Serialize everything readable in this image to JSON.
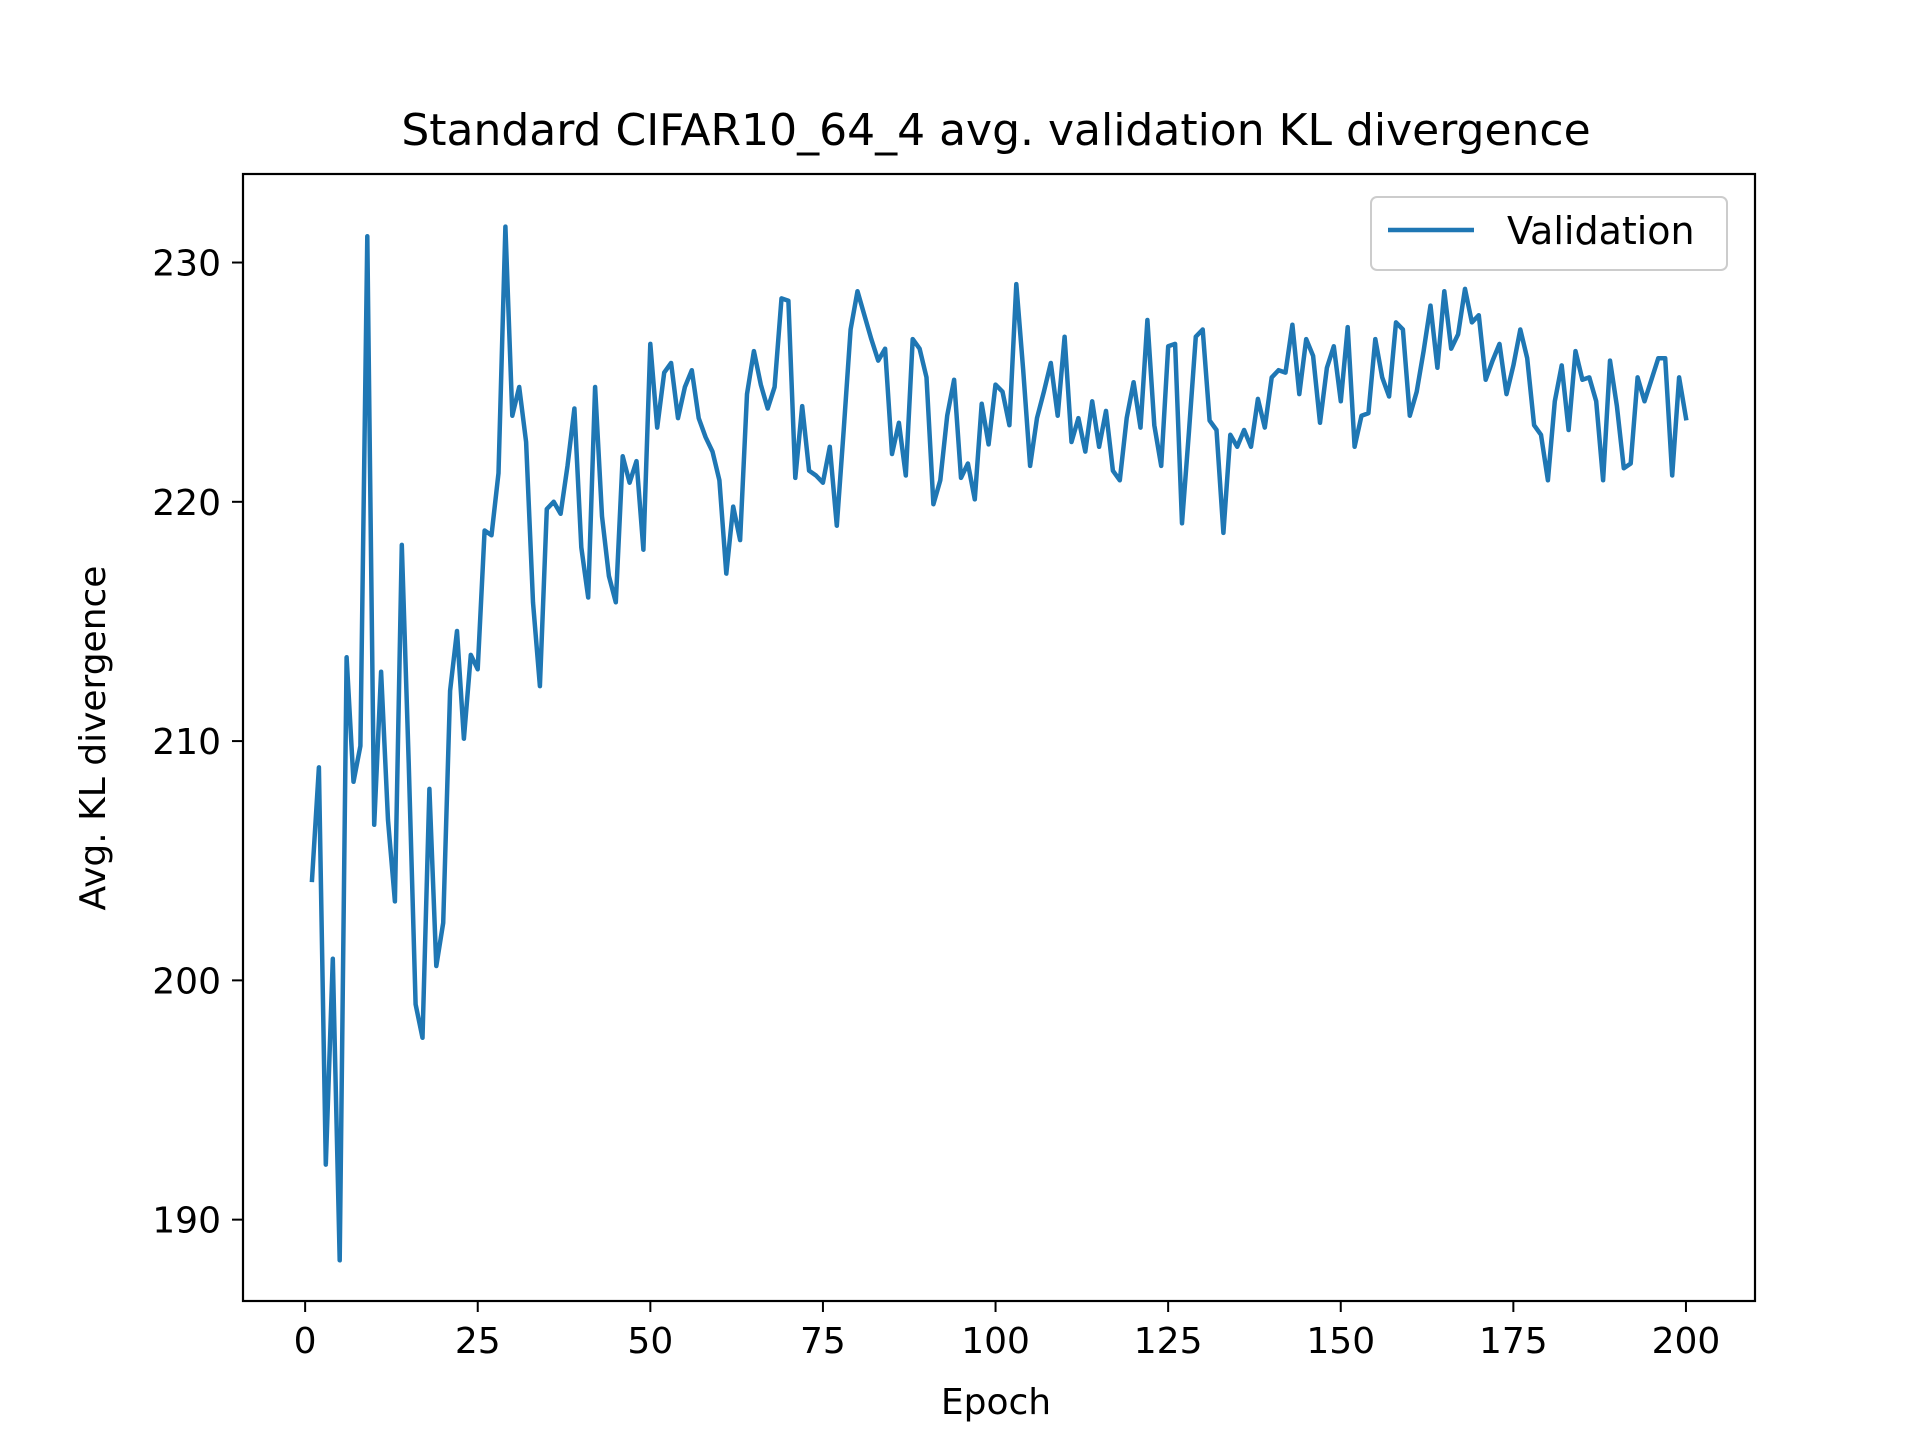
{
  "chart_data": {
    "type": "line",
    "title": "Standard CIFAR10_64_4 avg. validation KL divergence",
    "xlabel": "Epoch",
    "ylabel": "Avg. KL divergence",
    "xlim": [
      -9,
      210
    ],
    "ylim": [
      186.6,
      233.7
    ],
    "xticks": [
      0,
      25,
      50,
      75,
      100,
      125,
      150,
      175,
      200
    ],
    "yticks": [
      190,
      200,
      210,
      220,
      230
    ],
    "xtick_labels": [
      "0",
      "25",
      "50",
      "75",
      "100",
      "125",
      "150",
      "175",
      "200"
    ],
    "ytick_labels": [
      "190",
      "200",
      "210",
      "220",
      "230"
    ],
    "grid": false,
    "legend": {
      "position": "top-right",
      "entries": [
        "Validation"
      ]
    },
    "series": [
      {
        "name": "Validation",
        "color": "#1f77b4",
        "x": [
          1,
          2,
          3,
          4,
          5,
          6,
          7,
          8,
          9,
          10,
          11,
          12,
          13,
          14,
          15,
          16,
          17,
          18,
          19,
          20,
          21,
          22,
          23,
          24,
          25,
          26,
          27,
          28,
          29,
          30,
          31,
          32,
          33,
          34,
          35,
          36,
          37,
          38,
          39,
          40,
          41,
          42,
          43,
          44,
          45,
          46,
          47,
          48,
          49,
          50,
          51,
          52,
          53,
          54,
          55,
          56,
          57,
          58,
          59,
          60,
          61,
          62,
          63,
          64,
          65,
          66,
          67,
          68,
          69,
          70,
          71,
          72,
          73,
          74,
          75,
          76,
          77,
          78,
          79,
          80,
          81,
          82,
          83,
          84,
          85,
          86,
          87,
          88,
          89,
          90,
          91,
          92,
          93,
          94,
          95,
          96,
          97,
          98,
          99,
          100,
          101,
          102,
          103,
          104,
          105,
          106,
          107,
          108,
          109,
          110,
          111,
          112,
          113,
          114,
          115,
          116,
          117,
          118,
          119,
          120,
          121,
          122,
          123,
          124,
          125,
          126,
          127,
          128,
          129,
          130,
          131,
          132,
          133,
          134,
          135,
          136,
          137,
          138,
          139,
          140,
          141,
          142,
          143,
          144,
          145,
          146,
          147,
          148,
          149,
          150,
          151,
          152,
          153,
          154,
          155,
          156,
          157,
          158,
          159,
          160,
          161,
          162,
          163,
          164,
          165,
          166,
          167,
          168,
          169,
          170,
          171,
          172,
          173,
          174,
          175,
          176,
          177,
          178,
          179,
          180,
          181,
          182,
          183,
          184,
          185,
          186,
          187,
          188,
          189,
          190,
          191,
          192,
          193,
          194,
          195,
          196,
          197,
          198,
          199,
          200
        ],
        "y": [
          204.2,
          208.9,
          192.3,
          200.9,
          188.3,
          213.5,
          208.3,
          209.8,
          231.1,
          206.5,
          212.9,
          206.7,
          203.3,
          218.2,
          209.1,
          199.0,
          197.6,
          208.0,
          200.6,
          202.4,
          212.1,
          214.6,
          210.1,
          213.6,
          213.0,
          218.8,
          218.6,
          221.2,
          231.5,
          223.6,
          224.8,
          222.5,
          215.8,
          212.3,
          219.7,
          220.0,
          219.5,
          221.5,
          223.9,
          218.1,
          216.0,
          224.8,
          219.4,
          216.9,
          215.8,
          221.9,
          220.8,
          221.7,
          218.0,
          226.6,
          223.1,
          225.4,
          225.8,
          223.5,
          224.8,
          225.5,
          223.5,
          222.7,
          222.1,
          220.9,
          217.0,
          219.8,
          218.4,
          224.5,
          226.3,
          224.9,
          223.9,
          224.8,
          228.5,
          228.4,
          221.0,
          224.0,
          221.3,
          221.1,
          220.8,
          222.3,
          219.0,
          223.0,
          227.2,
          228.8,
          227.8,
          226.8,
          225.9,
          226.4,
          222.0,
          223.3,
          221.1,
          226.8,
          226.4,
          225.2,
          219.9,
          220.9,
          223.6,
          225.1,
          221.0,
          221.6,
          220.1,
          224.1,
          222.4,
          224.9,
          224.6,
          223.2,
          229.1,
          225.5,
          221.5,
          223.5,
          224.6,
          225.8,
          223.6,
          226.9,
          222.5,
          223.5,
          222.1,
          224.2,
          222.3,
          223.8,
          221.3,
          220.9,
          223.5,
          225.0,
          223.1,
          227.6,
          223.2,
          221.5,
          226.5,
          226.6,
          219.1,
          222.9,
          226.9,
          227.2,
          223.4,
          223.0,
          218.7,
          222.8,
          222.3,
          223.0,
          222.3,
          224.3,
          223.1,
          225.2,
          225.5,
          225.4,
          227.4,
          224.5,
          226.8,
          226.1,
          223.3,
          225.6,
          226.5,
          224.2,
          227.3,
          222.3,
          223.6,
          223.7,
          226.8,
          225.2,
          224.4,
          227.5,
          227.2,
          223.6,
          224.6,
          226.3,
          228.2,
          225.6,
          228.8,
          226.4,
          227.0,
          228.9,
          227.5,
          227.8,
          225.1,
          225.9,
          226.6,
          224.5,
          225.7,
          227.2,
          226.0,
          223.2,
          222.8,
          220.9,
          224.2,
          225.7,
          223.0,
          226.3,
          225.1,
          225.2,
          224.2,
          220.9,
          225.9,
          224.0,
          221.4,
          221.6,
          225.2,
          224.2,
          225.1,
          226.0,
          226.0,
          221.1,
          225.2,
          223.5
        ]
      }
    ]
  }
}
